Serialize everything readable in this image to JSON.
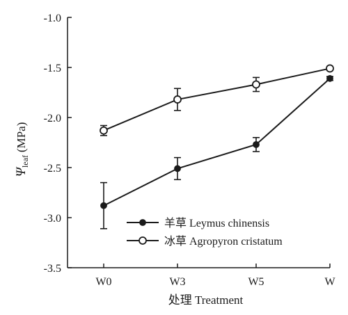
{
  "chart_data": {
    "type": "line",
    "categories": [
      "W0",
      "W3",
      "W5",
      "W"
    ],
    "series": [
      {
        "name": "羊草 Leymus chinensis",
        "marker": "filled-circle",
        "values": [
          -2.88,
          -2.51,
          -2.27,
          -1.61
        ],
        "errors": [
          0.23,
          0.11,
          0.07,
          0.02
        ]
      },
      {
        "name": "冰草 Agropyron cristatum",
        "marker": "open-circle",
        "values": [
          -2.13,
          -1.82,
          -1.67,
          -1.51
        ],
        "errors": [
          0.05,
          0.11,
          0.07,
          0.02
        ]
      }
    ],
    "xlabel": "处理 Treatment",
    "ylabel": {
      "symbol": "Ψ",
      "subscript": "leaf",
      "unit": "(MPa)"
    },
    "ylim": [
      -3.5,
      -1.0
    ],
    "yticks": [
      "-1.0",
      "-1.5",
      "-2.0",
      "-2.5",
      "-3.0",
      "-3.5"
    ],
    "legend_position": "bottom-right",
    "grid": false
  },
  "colors": {
    "line": "#1a1a1a",
    "background": "#ffffff"
  }
}
